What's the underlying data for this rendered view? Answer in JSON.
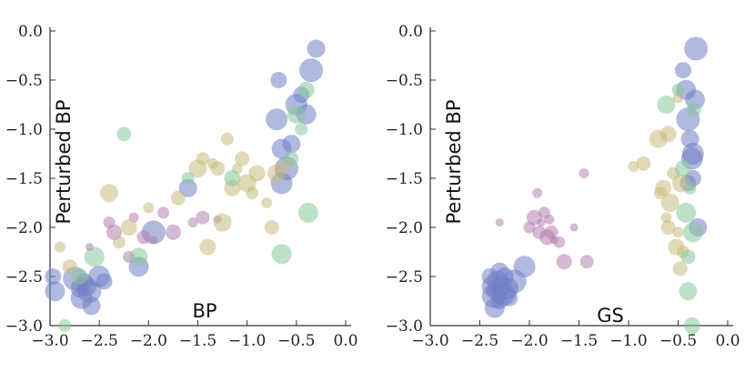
{
  "chart_data": [
    {
      "type": "scatter",
      "title": "",
      "xlabel": "BP",
      "ylabel": "Perturbed BP",
      "xlim": [
        -3.0,
        0.0
      ],
      "ylim": [
        -3.0,
        0.0
      ],
      "x_ticks": [
        "-3.0",
        "-2.5",
        "-2.0",
        "-1.5",
        "-1.0",
        "-0.5",
        "0.0"
      ],
      "y_ticks": [
        "0.0",
        "-0.5",
        "-1.0",
        "-1.5",
        "-2.0",
        "-2.5",
        "-3.0"
      ],
      "series": [
        {
          "name": "blue",
          "color": "#6f7fc4",
          "points": [
            [
              -2.97,
              -2.5
            ],
            [
              -2.95,
              -2.65
            ],
            [
              -2.75,
              -2.52
            ],
            [
              -2.7,
              -2.62
            ],
            [
              -2.68,
              -2.72
            ],
            [
              -2.65,
              -2.55
            ],
            [
              -2.63,
              -2.6
            ],
            [
              -2.6,
              -2.65
            ],
            [
              -2.58,
              -2.8
            ],
            [
              -2.5,
              -2.5
            ],
            [
              -2.45,
              -2.55
            ],
            [
              -2.1,
              -2.4
            ],
            [
              -1.95,
              -2.05
            ],
            [
              -1.6,
              -1.6
            ],
            [
              -0.7,
              -0.9
            ],
            [
              -0.68,
              -0.5
            ],
            [
              -0.65,
              -1.2
            ],
            [
              -0.6,
              -1.4
            ],
            [
              -0.55,
              -1.15
            ],
            [
              -0.5,
              -0.75
            ],
            [
              -0.45,
              -0.65
            ],
            [
              -0.4,
              -0.85
            ],
            [
              -0.35,
              -0.4
            ],
            [
              -0.3,
              -0.18
            ],
            [
              -0.65,
              -1.55
            ]
          ]
        },
        {
          "name": "purple",
          "color": "#b57fae",
          "points": [
            [
              -2.6,
              -2.2
            ],
            [
              -2.4,
              -1.95
            ],
            [
              -2.35,
              -2.05
            ],
            [
              -2.15,
              -1.9
            ],
            [
              -2.05,
              -2.1
            ],
            [
              -1.95,
              -2.13
            ],
            [
              -1.85,
              -1.85
            ],
            [
              -1.75,
              -2.05
            ],
            [
              -1.55,
              -1.95
            ],
            [
              -1.45,
              -1.9
            ],
            [
              -1.3,
              -1.92
            ],
            [
              -2.2,
              -2.3
            ]
          ]
        },
        {
          "name": "olive",
          "color": "#c8bb7a",
          "points": [
            [
              -2.9,
              -2.2
            ],
            [
              -2.8,
              -2.4
            ],
            [
              -2.4,
              -1.65
            ],
            [
              -2.3,
              -2.15
            ],
            [
              -2.2,
              -2.0
            ],
            [
              -2.0,
              -1.8
            ],
            [
              -1.7,
              -1.7
            ],
            [
              -1.5,
              -1.4
            ],
            [
              -1.45,
              -1.3
            ],
            [
              -1.4,
              -2.2
            ],
            [
              -1.35,
              -1.35
            ],
            [
              -1.3,
              -1.4
            ],
            [
              -1.25,
              -1.95
            ],
            [
              -1.2,
              -1.1
            ],
            [
              -1.15,
              -1.6
            ],
            [
              -1.1,
              -1.4
            ],
            [
              -1.05,
              -1.3
            ],
            [
              -1.0,
              -1.55
            ],
            [
              -0.95,
              -1.65
            ],
            [
              -0.9,
              -1.45
            ],
            [
              -0.8,
              -1.75
            ],
            [
              -0.75,
              -2.0
            ],
            [
              -0.7,
              -1.45
            ],
            [
              -0.6,
              -1.35
            ]
          ]
        },
        {
          "name": "green",
          "color": "#86c99a",
          "points": [
            [
              -2.85,
              -3.0
            ],
            [
              -2.7,
              -2.5
            ],
            [
              -2.55,
              -2.3
            ],
            [
              -2.25,
              -1.05
            ],
            [
              -2.1,
              -2.3
            ],
            [
              -1.6,
              -1.5
            ],
            [
              -1.15,
              -1.5
            ],
            [
              -0.65,
              -2.27
            ],
            [
              -0.55,
              -1.3
            ],
            [
              -0.5,
              -0.85
            ],
            [
              -0.45,
              -1.0
            ],
            [
              -0.4,
              -0.6
            ],
            [
              -0.38,
              -1.85
            ]
          ]
        }
      ]
    },
    {
      "type": "scatter",
      "title": "",
      "xlabel": "GS",
      "ylabel": "Perturbed BP",
      "xlim": [
        -3.0,
        0.0
      ],
      "ylim": [
        -3.0,
        0.0
      ],
      "x_ticks": [
        "-3.0",
        "-2.5",
        "-2.0",
        "-1.5",
        "-1.0",
        "-0.5",
        "0.0"
      ],
      "y_ticks": [
        "0.0",
        "-0.5",
        "-1.0",
        "-1.5",
        "-2.0",
        "-2.5",
        "-3.0"
      ],
      "series": [
        {
          "name": "blue",
          "color": "#6f7fc4",
          "points": [
            [
              -2.4,
              -2.5
            ],
            [
              -2.38,
              -2.6
            ],
            [
              -2.36,
              -2.7
            ],
            [
              -2.34,
              -2.65
            ],
            [
              -2.32,
              -2.55
            ],
            [
              -2.3,
              -2.75
            ],
            [
              -2.28,
              -2.6
            ],
            [
              -2.26,
              -2.68
            ],
            [
              -2.25,
              -2.5
            ],
            [
              -2.22,
              -2.62
            ],
            [
              -2.2,
              -2.72
            ],
            [
              -2.35,
              -2.82
            ],
            [
              -2.15,
              -2.55
            ],
            [
              -2.3,
              -2.45
            ],
            [
              -2.05,
              -2.4
            ],
            [
              -0.45,
              -0.4
            ],
            [
              -0.42,
              -0.6
            ],
            [
              -0.4,
              -0.9
            ],
            [
              -0.38,
              -1.1
            ],
            [
              -0.36,
              -1.3
            ],
            [
              -0.35,
              -1.5
            ],
            [
              -0.33,
              -0.7
            ],
            [
              -0.32,
              -0.18
            ],
            [
              -0.3,
              -2.0
            ],
            [
              -0.35,
              -1.25
            ],
            [
              -0.4,
              -1.55
            ]
          ]
        },
        {
          "name": "purple",
          "color": "#b57fae",
          "points": [
            [
              -2.3,
              -1.95
            ],
            [
              -2.0,
              -2.0
            ],
            [
              -1.95,
              -1.9
            ],
            [
              -1.92,
              -1.65
            ],
            [
              -1.9,
              -2.05
            ],
            [
              -1.88,
              -1.95
            ],
            [
              -1.85,
              -1.85
            ],
            [
              -1.82,
              -2.1
            ],
            [
              -1.8,
              -1.92
            ],
            [
              -1.78,
              -2.05
            ],
            [
              -1.75,
              -2.13
            ],
            [
              -1.7,
              -2.15
            ],
            [
              -1.65,
              -2.35
            ],
            [
              -1.45,
              -1.45
            ],
            [
              -1.42,
              -2.35
            ],
            [
              -1.55,
              -2.0
            ]
          ]
        },
        {
          "name": "olive",
          "color": "#c8bb7a",
          "points": [
            [
              -0.95,
              -1.38
            ],
            [
              -0.85,
              -1.35
            ],
            [
              -0.7,
              -1.1
            ],
            [
              -0.68,
              -1.65
            ],
            [
              -0.65,
              -1.6
            ],
            [
              -0.62,
              -1.9
            ],
            [
              -0.6,
              -2.0
            ],
            [
              -0.58,
              -1.75
            ],
            [
              -0.55,
              -1.45
            ],
            [
              -0.52,
              -2.2
            ],
            [
              -0.5,
              -2.05
            ],
            [
              -0.48,
              -2.42
            ],
            [
              -0.47,
              -1.55
            ],
            [
              -0.45,
              -2.25
            ],
            [
              -0.6,
              -1.05
            ],
            [
              -0.5,
              -0.68
            ]
          ]
        },
        {
          "name": "green",
          "color": "#86c99a",
          "points": [
            [
              -0.5,
              -0.6
            ],
            [
              -0.45,
              -1.4
            ],
            [
              -0.42,
              -1.85
            ],
            [
              -0.4,
              -2.3
            ],
            [
              -0.4,
              -2.65
            ],
            [
              -0.38,
              -1.6
            ],
            [
              -0.36,
              -3.0
            ],
            [
              -0.35,
              -2.05
            ],
            [
              -0.34,
              -0.8
            ],
            [
              -0.62,
              -0.75
            ]
          ]
        }
      ]
    }
  ]
}
